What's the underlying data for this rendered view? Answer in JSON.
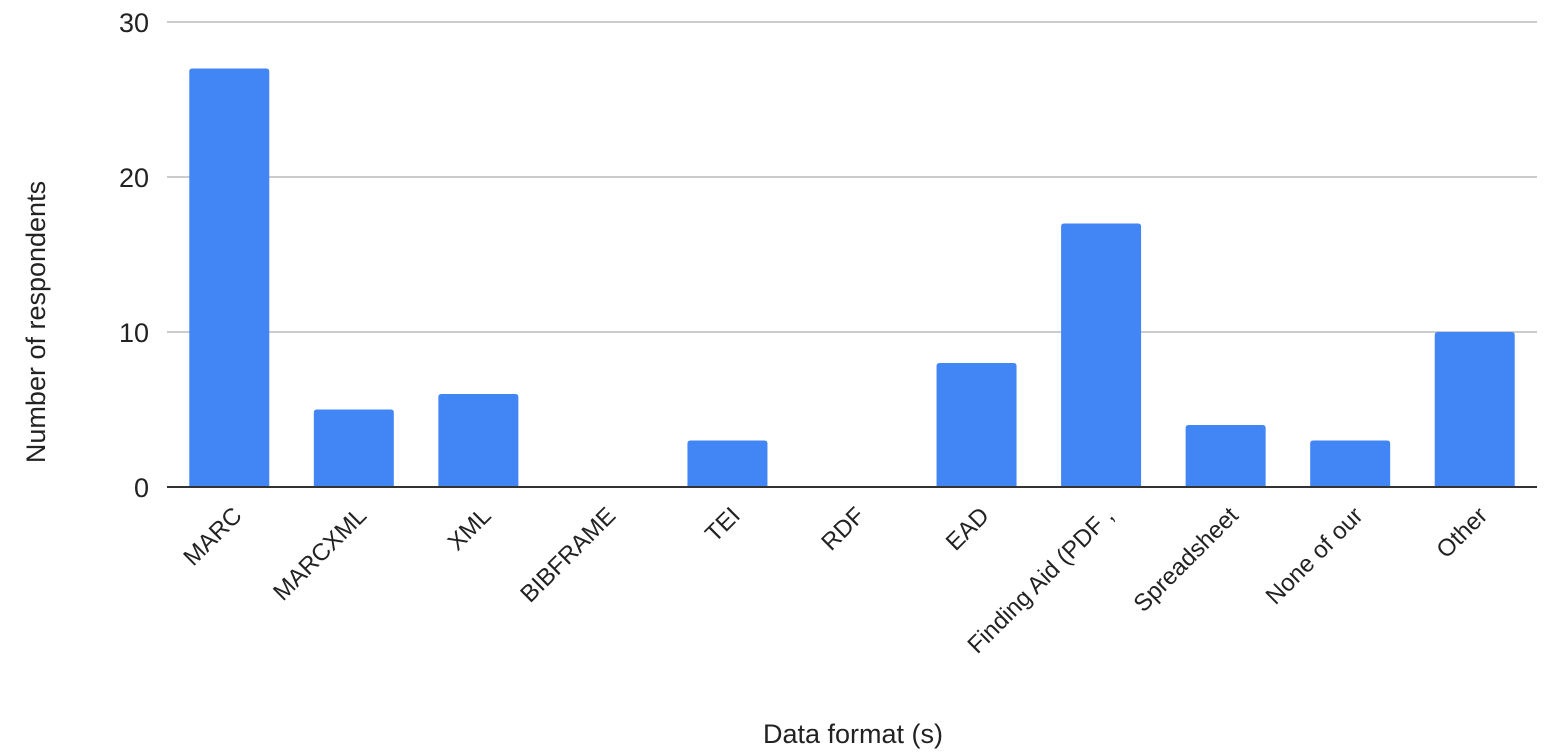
{
  "chart_data": {
    "type": "bar",
    "title": "",
    "xlabel": "Data format (s)",
    "ylabel": "Number of respondents",
    "categories": [
      "MARC",
      "MARCXML",
      "XML",
      "BIBFRAME",
      "TEI",
      "RDF",
      "EAD",
      "Finding Aid (PDF ,",
      "Spreadsheet",
      "None of our",
      "Other"
    ],
    "values": [
      27,
      5,
      6,
      0,
      3,
      0,
      8,
      17,
      4,
      3,
      10
    ],
    "ylim": [
      0,
      30
    ],
    "yticks": [
      0,
      10,
      20,
      30
    ],
    "grid": true,
    "legend": "none",
    "colors": {
      "bar": "#4285f4",
      "grid": "#cccccc",
      "axis": "#333333",
      "text": "#222222"
    }
  }
}
